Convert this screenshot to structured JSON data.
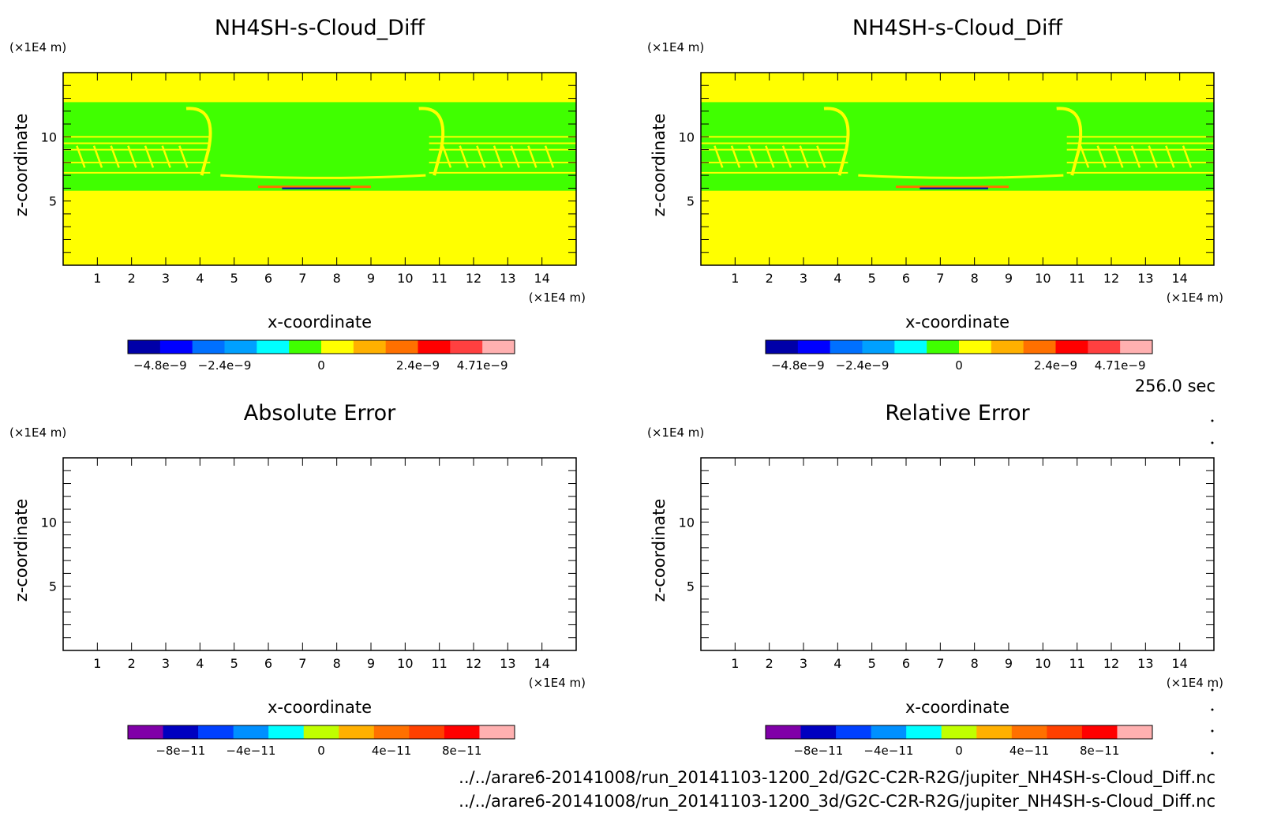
{
  "timestamp": "256.0 sec",
  "file_paths": [
    "../../arare6-20141008/run_20141103-1200_2d/G2C-C2R-R2G/jupiter_NH4SH-s-Cloud_Diff.nc",
    "../../arare6-20141008/run_20141103-1200_3d/G2C-C2R-R2G/jupiter_NH4SH-s-Cloud_Diff.nc"
  ],
  "colors": {
    "top_levels": [
      "#0000a8",
      "#0000ff",
      "#0070ff",
      "#00a0ff",
      "#00ffff",
      "#40ff00",
      "#ffff00",
      "#ffb000",
      "#ff7000",
      "#ff0000",
      "#ff4040",
      "#ffb0b0"
    ],
    "bottom_levels": [
      "#8000a8",
      "#0000c0",
      "#0040ff",
      "#0090ff",
      "#00ffff",
      "#c0ff00",
      "#ffb000",
      "#ff7000",
      "#ff4000",
      "#ff0000",
      "#ffb0b0"
    ],
    "field_background": "#ffff00",
    "cloud_band": "#40ff00"
  },
  "chart_data": [
    {
      "type": "heatmap",
      "title": "NH4SH-s-Cloud_Diff",
      "xlabel": "x-coordinate",
      "ylabel": "z-coordinate",
      "x_unit": "(×1E4 m)",
      "y_unit": "(×1E4 m)",
      "xlim": [
        0,
        15
      ],
      "ylim": [
        0,
        15
      ],
      "x_ticks": [
        "1",
        "2",
        "3",
        "4",
        "5",
        "6",
        "7",
        "8",
        "9",
        "10",
        "11",
        "12",
        "13",
        "14"
      ],
      "y_ticks": [
        "5",
        "10"
      ],
      "colorbar_labels": [
        "−4.8e−9",
        "−2.4e−9",
        "0",
        "2.4e−9",
        "4.71e−9"
      ],
      "field": {
        "background_value": "0 to 2.4e-9",
        "cloud_band_z": [
          5.8,
          12.7
        ],
        "filled": true
      }
    },
    {
      "type": "heatmap",
      "title": "NH4SH-s-Cloud_Diff",
      "xlabel": "x-coordinate",
      "ylabel": "z-coordinate",
      "x_unit": "(×1E4 m)",
      "y_unit": "(×1E4 m)",
      "xlim": [
        0,
        15
      ],
      "ylim": [
        0,
        15
      ],
      "x_ticks": [
        "1",
        "2",
        "3",
        "4",
        "5",
        "6",
        "7",
        "8",
        "9",
        "10",
        "11",
        "12",
        "13",
        "14"
      ],
      "y_ticks": [
        "5",
        "10"
      ],
      "colorbar_labels": [
        "−4.8e−9",
        "−2.4e−9",
        "0",
        "2.4e−9",
        "4.71e−9"
      ],
      "field": {
        "background_value": "0 to 2.4e-9",
        "cloud_band_z": [
          5.8,
          12.7
        ],
        "filled": true
      }
    },
    {
      "type": "heatmap",
      "title": "Absolute Error",
      "xlabel": "x-coordinate",
      "ylabel": "z-coordinate",
      "x_unit": "(×1E4 m)",
      "y_unit": "(×1E4 m)",
      "xlim": [
        0,
        15
      ],
      "ylim": [
        0,
        15
      ],
      "x_ticks": [
        "1",
        "2",
        "3",
        "4",
        "5",
        "6",
        "7",
        "8",
        "9",
        "10",
        "11",
        "12",
        "13",
        "14"
      ],
      "y_ticks": [
        "5",
        "10"
      ],
      "colorbar_labels": [
        "−8e−11",
        "−4e−11",
        "0",
        "4e−11",
        "8e−11"
      ],
      "field": {
        "filled": false
      }
    },
    {
      "type": "heatmap",
      "title": "Relative Error",
      "xlabel": "x-coordinate",
      "ylabel": "z-coordinate",
      "x_unit": "(×1E4 m)",
      "y_unit": "(×1E4 m)",
      "xlim": [
        0,
        15
      ],
      "ylim": [
        0,
        15
      ],
      "x_ticks": [
        "1",
        "2",
        "3",
        "4",
        "5",
        "6",
        "7",
        "8",
        "9",
        "10",
        "11",
        "12",
        "13",
        "14"
      ],
      "y_ticks": [
        "5",
        "10"
      ],
      "colorbar_labels": [
        "−8e−11",
        "−4e−11",
        "0",
        "4e−11",
        "8e−11"
      ],
      "field": {
        "filled": false
      }
    }
  ]
}
